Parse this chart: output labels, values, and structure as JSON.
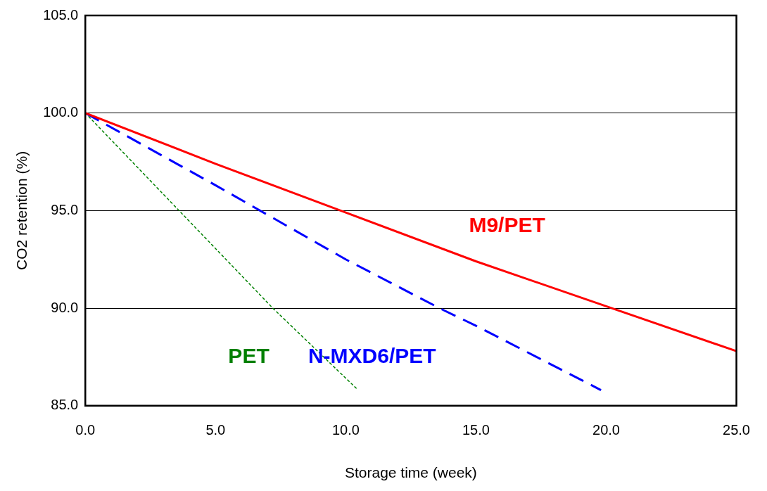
{
  "chart_data": {
    "type": "line",
    "xlabel": "Storage time (week)",
    "ylabel": "CO2 retention (%)",
    "xlim": [
      0,
      25
    ],
    "xticks": [
      {
        "value": 0,
        "label": "0.0"
      },
      {
        "value": 5,
        "label": "5.0"
      },
      {
        "value": 10,
        "label": "10.0"
      },
      {
        "value": 15,
        "label": "15.0"
      },
      {
        "value": 20,
        "label": "20.0"
      },
      {
        "value": 25,
        "label": "25.0"
      }
    ],
    "ylim": [
      85,
      105
    ],
    "yticks": [
      {
        "value": 85,
        "label": "85.0"
      },
      {
        "value": 90,
        "label": "90.0"
      },
      {
        "value": 95,
        "label": "95.0"
      },
      {
        "value": 100,
        "label": "100.0"
      },
      {
        "value": 105,
        "label": "105.0"
      }
    ],
    "grid": "y",
    "legend": false,
    "marker": "none",
    "series": [
      {
        "name": "M9/PET",
        "color": "#ff0000",
        "line_style": "solid",
        "x": [
          0,
          5,
          10,
          15,
          20,
          25
        ],
        "values": [
          100,
          97.4,
          94.9,
          92.4,
          90.1,
          87.8
        ]
      },
      {
        "name": "N-MXD6/PET",
        "color": "#0000ff",
        "line_style": "dashed",
        "x": [
          0,
          5,
          10,
          13.6,
          15,
          19.8
        ],
        "values": [
          100,
          96.3,
          92.5,
          90.0,
          89.1,
          85.8
        ]
      },
      {
        "name": "PET",
        "color": "#008000",
        "line_style": "dotted",
        "x": [
          0,
          3.6,
          7.2,
          10.4
        ],
        "values": [
          100,
          95,
          90,
          85.9
        ]
      }
    ]
  }
}
